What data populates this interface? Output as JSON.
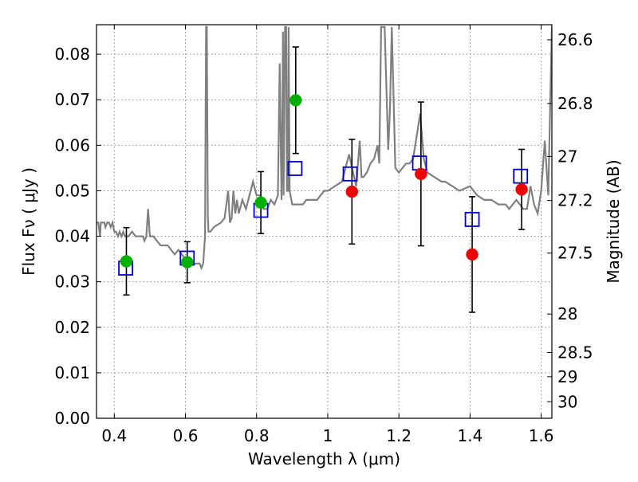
{
  "chart_data": {
    "type": "scatter",
    "xlabel": "Wavelength  λ (μm)",
    "ylabel": "Flux  Fν  ( μJy )",
    "y2label": "Magnitude (AB)",
    "xlim": [
      0.35,
      1.63
    ],
    "ylim": [
      0.0,
      0.0865
    ],
    "grid": true,
    "x_ticks": [
      0.4,
      0.6,
      0.8,
      1.0,
      1.2,
      1.4,
      1.6
    ],
    "x_tick_labels": [
      "0.4",
      "0.6",
      "0.8",
      "1",
      "1.2",
      "1.4",
      "1.6"
    ],
    "y_ticks": [
      0.0,
      0.01,
      0.02,
      0.03,
      0.04,
      0.05,
      0.06,
      0.07,
      0.08
    ],
    "y_tick_labels": [
      "0.00",
      "0.01",
      "0.02",
      "0.03",
      "0.04",
      "0.05",
      "0.06",
      "0.07",
      "0.08"
    ],
    "mag_ticks": [
      26.6,
      26.8,
      27,
      27.2,
      27.5,
      28,
      28.5,
      29,
      30
    ],
    "mag_tick_labels": [
      "26.6",
      "26.8",
      "27",
      "27.2",
      "27.5",
      "28",
      "28.5",
      "29",
      "30"
    ],
    "colors": {
      "template": "#808080",
      "model": "#0000cc",
      "detection": "#00b000",
      "other": "#ee0000",
      "errorbar": "#000000",
      "grid": "#888888"
    },
    "series": [
      {
        "style": "template-line",
        "x": [
          0.35,
          0.355,
          0.36,
          0.362,
          0.365,
          0.368,
          0.372,
          0.375,
          0.38,
          0.385,
          0.39,
          0.395,
          0.4,
          0.405,
          0.41,
          0.415,
          0.42,
          0.425,
          0.43,
          0.44,
          0.45,
          0.46,
          0.47,
          0.48,
          0.485,
          0.49,
          0.495,
          0.5,
          0.51,
          0.52,
          0.53,
          0.55,
          0.57,
          0.58,
          0.59,
          0.6,
          0.61,
          0.62,
          0.63,
          0.64,
          0.645,
          0.65,
          0.655,
          0.658,
          0.66,
          0.663,
          0.665,
          0.67,
          0.68,
          0.7,
          0.71,
          0.72,
          0.725,
          0.73,
          0.735,
          0.74,
          0.745,
          0.75,
          0.76,
          0.77,
          0.78,
          0.79,
          0.8,
          0.81,
          0.82,
          0.83,
          0.84,
          0.85,
          0.86,
          0.865,
          0.87,
          0.872,
          0.874,
          0.876,
          0.88,
          0.883,
          0.885,
          0.888,
          0.89,
          0.893,
          0.9,
          0.91,
          0.92,
          0.93,
          0.94,
          0.95,
          0.96,
          0.97,
          0.98,
          0.99,
          1.0,
          1.02,
          1.04,
          1.06,
          1.08,
          1.09,
          1.095,
          1.1,
          1.11,
          1.12,
          1.13,
          1.14,
          1.145,
          1.15,
          1.16,
          1.17,
          1.175,
          1.18,
          1.19,
          1.2,
          1.21,
          1.22,
          1.23,
          1.24,
          1.26,
          1.27,
          1.28,
          1.3,
          1.32,
          1.33,
          1.35,
          1.37,
          1.4,
          1.42,
          1.44,
          1.46,
          1.48,
          1.5,
          1.51,
          1.53,
          1.55,
          1.56,
          1.57,
          1.58,
          1.59,
          1.6,
          1.61,
          1.62,
          1.63
        ],
        "values": [
          0.043,
          0.043,
          0.04,
          0.043,
          0.043,
          0.043,
          0.043,
          0.042,
          0.043,
          0.043,
          0.042,
          0.043,
          0.041,
          0.041,
          0.04,
          0.041,
          0.04,
          0.041,
          0.04,
          0.04,
          0.041,
          0.04,
          0.04,
          0.04,
          0.039,
          0.04,
          0.046,
          0.04,
          0.04,
          0.039,
          0.038,
          0.038,
          0.036,
          0.037,
          0.036,
          0.035,
          0.035,
          0.034,
          0.034,
          0.034,
          0.033,
          0.034,
          0.04,
          0.086,
          0.086,
          0.044,
          0.041,
          0.041,
          0.042,
          0.043,
          0.044,
          0.05,
          0.043,
          0.044,
          0.05,
          0.045,
          0.048,
          0.045,
          0.048,
          0.046,
          0.049,
          0.052,
          0.049,
          0.049,
          0.046,
          0.046,
          0.048,
          0.047,
          0.049,
          0.078,
          0.048,
          0.06,
          0.085,
          0.049,
          0.086,
          0.086,
          0.05,
          0.05,
          0.086,
          0.05,
          0.047,
          0.047,
          0.047,
          0.047,
          0.048,
          0.048,
          0.048,
          0.048,
          0.049,
          0.05,
          0.05,
          0.051,
          0.052,
          0.058,
          0.051,
          0.061,
          0.053,
          0.053,
          0.054,
          0.056,
          0.057,
          0.06,
          0.056,
          0.086,
          0.086,
          0.059,
          0.068,
          0.086,
          0.055,
          0.054,
          0.055,
          0.056,
          0.056,
          0.057,
          0.067,
          0.057,
          0.054,
          0.053,
          0.052,
          0.052,
          0.051,
          0.05,
          0.051,
          0.049,
          0.048,
          0.048,
          0.047,
          0.047,
          0.046,
          0.048,
          0.046,
          0.046,
          0.051,
          0.047,
          0.045,
          0.05,
          0.061,
          0.049,
          0.086
        ]
      },
      {
        "style": "open-square",
        "x": [
          0.432,
          0.605,
          0.812,
          0.908,
          1.063,
          1.258,
          1.406,
          1.542
        ],
        "values": [
          0.033,
          0.0352,
          0.0457,
          0.0549,
          0.0537,
          0.0561,
          0.0437,
          0.0532
        ]
      },
      {
        "style": "filled-circle-green",
        "x": [
          0.434,
          0.605,
          0.812,
          0.91
        ],
        "values": [
          0.0345,
          0.0343,
          0.0474,
          0.0699
        ],
        "err": [
          0.0074,
          0.0045,
          0.0068,
          0.0117
        ]
      },
      {
        "style": "filled-circle-red",
        "x": [
          1.068,
          1.262,
          1.406,
          1.545
        ],
        "values": [
          0.0498,
          0.0537,
          0.036,
          0.0503
        ],
        "err": [
          0.0115,
          0.0158,
          0.0127,
          0.0088
        ]
      }
    ]
  }
}
